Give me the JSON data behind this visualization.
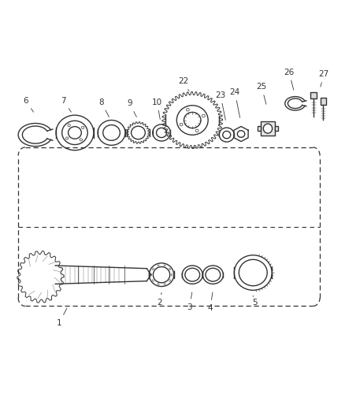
{
  "title": "",
  "background_color": "#ffffff",
  "line_color": "#333333",
  "label_color": "#333333",
  "fig_width": 4.38,
  "fig_height": 5.33,
  "dpi": 100
}
